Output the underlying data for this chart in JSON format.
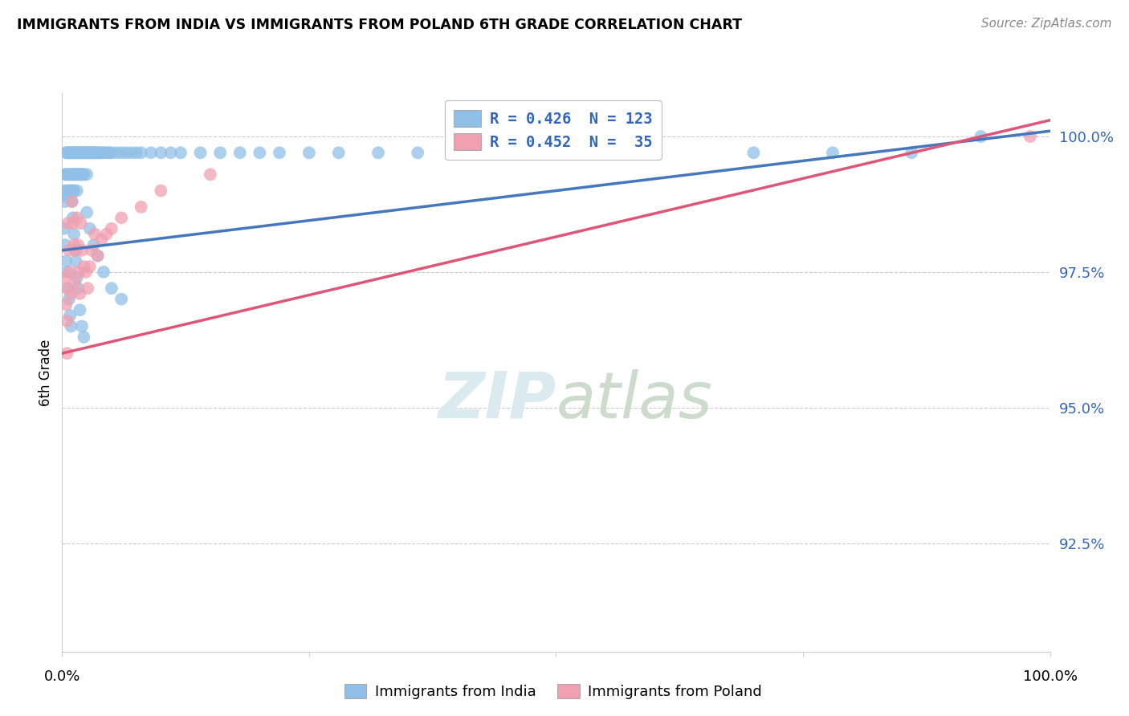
{
  "title": "IMMIGRANTS FROM INDIA VS IMMIGRANTS FROM POLAND 6TH GRADE CORRELATION CHART",
  "source": "Source: ZipAtlas.com",
  "ylabel": "6th Grade",
  "ytick_labels": [
    "92.5%",
    "95.0%",
    "97.5%",
    "100.0%"
  ],
  "ytick_values": [
    0.925,
    0.95,
    0.975,
    1.0
  ],
  "xlim": [
    0.0,
    1.0
  ],
  "ylim": [
    0.905,
    1.008
  ],
  "india_color": "#90C0E8",
  "poland_color": "#F0A0B0",
  "india_line_color": "#4477BB",
  "poland_line_color": "#DD5577",
  "background_color": "#FFFFFF",
  "india_R": 0.426,
  "india_N": 123,
  "poland_R": 0.452,
  "poland_N": 35,
  "india_line_x0": 0.0,
  "india_line_y0": 0.979,
  "india_line_x1": 1.0,
  "india_line_y1": 1.001,
  "poland_line_x0": 0.0,
  "poland_line_y0": 0.96,
  "poland_line_x1": 1.0,
  "poland_line_y1": 1.003,
  "india_points_x": [
    0.002,
    0.003,
    0.003,
    0.004,
    0.004,
    0.004,
    0.005,
    0.005,
    0.005,
    0.006,
    0.006,
    0.007,
    0.007,
    0.007,
    0.008,
    0.008,
    0.009,
    0.009,
    0.009,
    0.01,
    0.01,
    0.01,
    0.011,
    0.011,
    0.011,
    0.012,
    0.012,
    0.012,
    0.013,
    0.013,
    0.014,
    0.014,
    0.015,
    0.015,
    0.015,
    0.016,
    0.016,
    0.017,
    0.017,
    0.018,
    0.018,
    0.019,
    0.019,
    0.02,
    0.02,
    0.021,
    0.021,
    0.022,
    0.022,
    0.023,
    0.024,
    0.025,
    0.025,
    0.026,
    0.027,
    0.028,
    0.029,
    0.03,
    0.031,
    0.032,
    0.033,
    0.034,
    0.035,
    0.036,
    0.038,
    0.04,
    0.042,
    0.044,
    0.046,
    0.048,
    0.05,
    0.055,
    0.06,
    0.065,
    0.07,
    0.075,
    0.08,
    0.09,
    0.1,
    0.11,
    0.12,
    0.14,
    0.16,
    0.18,
    0.2,
    0.22,
    0.25,
    0.28,
    0.32,
    0.36,
    0.4,
    0.46,
    0.52,
    0.6,
    0.7,
    0.78,
    0.86,
    0.93,
    0.002,
    0.003,
    0.004,
    0.005,
    0.006,
    0.007,
    0.008,
    0.009,
    0.01,
    0.011,
    0.012,
    0.013,
    0.014,
    0.015,
    0.016,
    0.018,
    0.02,
    0.022,
    0.025,
    0.028,
    0.032,
    0.036,
    0.042,
    0.05,
    0.06
  ],
  "india_points_y": [
    0.99,
    0.993,
    0.988,
    0.997,
    0.993,
    0.989,
    0.997,
    0.993,
    0.99,
    0.997,
    0.993,
    0.997,
    0.993,
    0.99,
    0.997,
    0.993,
    0.997,
    0.993,
    0.99,
    0.997,
    0.993,
    0.99,
    0.997,
    0.993,
    0.99,
    0.997,
    0.993,
    0.99,
    0.997,
    0.993,
    0.997,
    0.993,
    0.997,
    0.993,
    0.99,
    0.997,
    0.993,
    0.997,
    0.993,
    0.997,
    0.993,
    0.997,
    0.993,
    0.997,
    0.993,
    0.997,
    0.993,
    0.997,
    0.993,
    0.997,
    0.997,
    0.997,
    0.993,
    0.997,
    0.997,
    0.997,
    0.997,
    0.997,
    0.997,
    0.997,
    0.997,
    0.997,
    0.997,
    0.997,
    0.997,
    0.997,
    0.997,
    0.997,
    0.997,
    0.997,
    0.997,
    0.997,
    0.997,
    0.997,
    0.997,
    0.997,
    0.997,
    0.997,
    0.997,
    0.997,
    0.997,
    0.997,
    0.997,
    0.997,
    0.997,
    0.997,
    0.997,
    0.997,
    0.997,
    0.997,
    0.997,
    0.997,
    0.997,
    0.997,
    0.997,
    0.997,
    0.997,
    1.0,
    0.983,
    0.98,
    0.977,
    0.975,
    0.972,
    0.97,
    0.967,
    0.965,
    0.988,
    0.985,
    0.982,
    0.979,
    0.977,
    0.974,
    0.972,
    0.968,
    0.965,
    0.963,
    0.986,
    0.983,
    0.98,
    0.978,
    0.975,
    0.972,
    0.97
  ],
  "poland_points_x": [
    0.003,
    0.004,
    0.005,
    0.005,
    0.006,
    0.007,
    0.008,
    0.009,
    0.01,
    0.011,
    0.012,
    0.013,
    0.014,
    0.015,
    0.016,
    0.017,
    0.018,
    0.019,
    0.02,
    0.022,
    0.024,
    0.026,
    0.028,
    0.03,
    0.033,
    0.036,
    0.04,
    0.045,
    0.05,
    0.06,
    0.08,
    0.1,
    0.15,
    0.98,
    0.005
  ],
  "poland_points_y": [
    0.974,
    0.969,
    0.972,
    0.966,
    0.984,
    0.979,
    0.975,
    0.971,
    0.988,
    0.984,
    0.98,
    0.973,
    0.979,
    0.985,
    0.98,
    0.975,
    0.971,
    0.984,
    0.979,
    0.976,
    0.975,
    0.972,
    0.976,
    0.979,
    0.982,
    0.978,
    0.981,
    0.982,
    0.983,
    0.985,
    0.987,
    0.99,
    0.993,
    1.0,
    0.96
  ]
}
